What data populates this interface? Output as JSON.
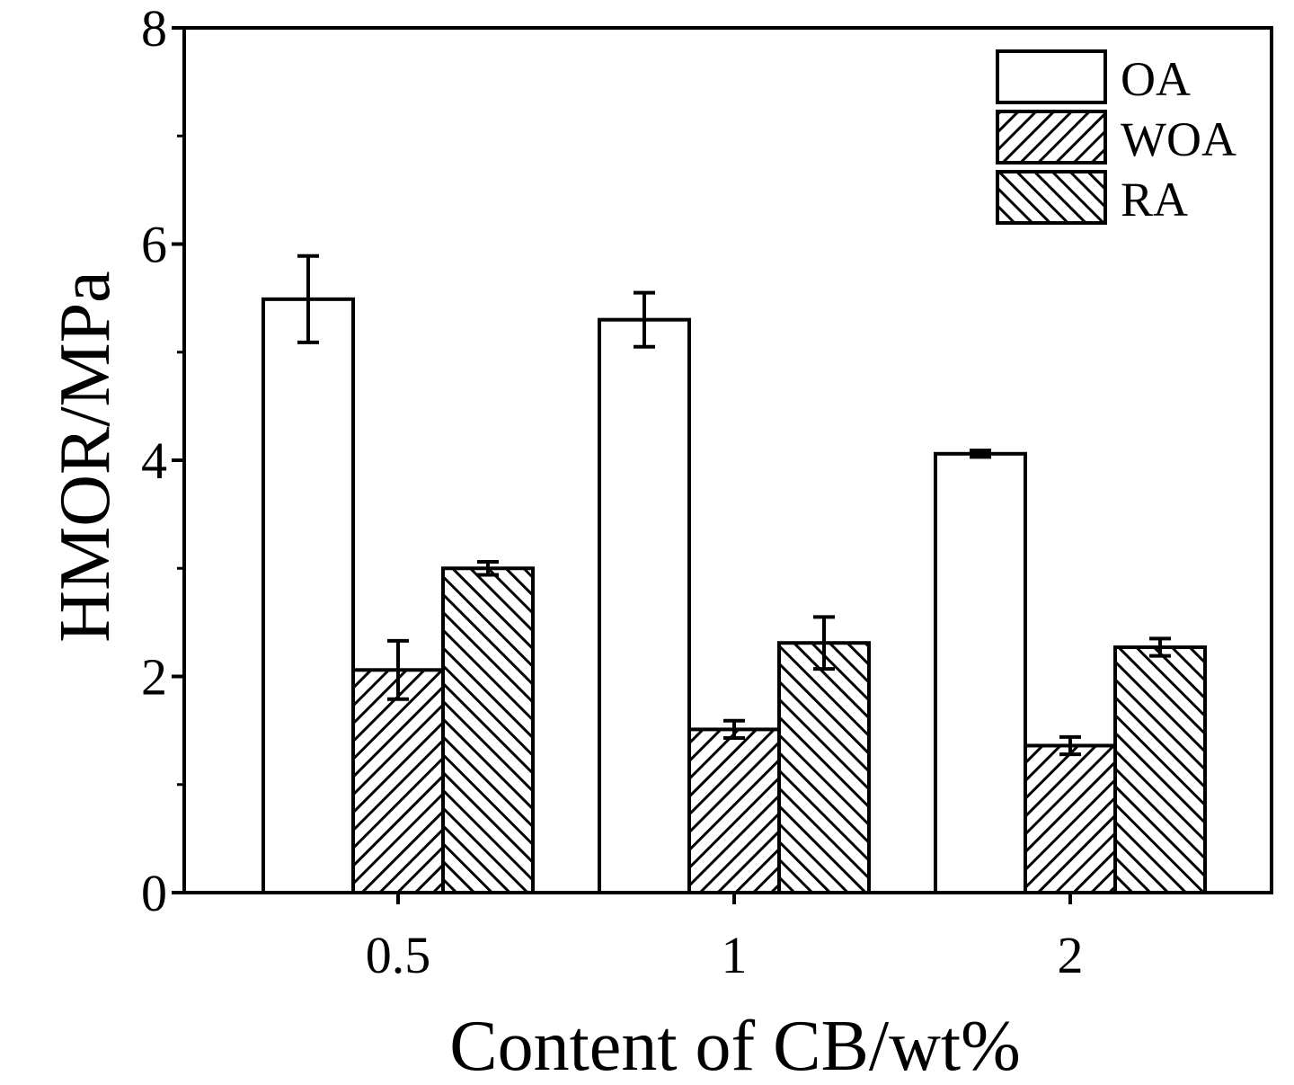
{
  "chart_data": {
    "type": "bar",
    "categories": [
      "0.5",
      "1",
      "2"
    ],
    "series": [
      {
        "name": "OA",
        "values": [
          5.49,
          5.3,
          4.06
        ],
        "errors": [
          0.4,
          0.25,
          0.03
        ],
        "pattern": "none"
      },
      {
        "name": "WOA",
        "values": [
          2.06,
          1.51,
          1.36
        ],
        "errors": [
          0.27,
          0.08,
          0.08
        ],
        "pattern": "diagonal-up"
      },
      {
        "name": "RA",
        "values": [
          3.0,
          2.31,
          2.27
        ],
        "errors": [
          0.06,
          0.24,
          0.08
        ],
        "pattern": "diagonal-down"
      }
    ],
    "xlabel": "Content of CB/wt%",
    "ylabel": "HMOR/MPa",
    "ylim": [
      0,
      8
    ],
    "yticks": [
      0,
      2,
      4,
      6,
      8
    ],
    "grid": false,
    "legend": "top-right",
    "colors": {
      "stroke": "#000000",
      "background": "#ffffff"
    }
  }
}
